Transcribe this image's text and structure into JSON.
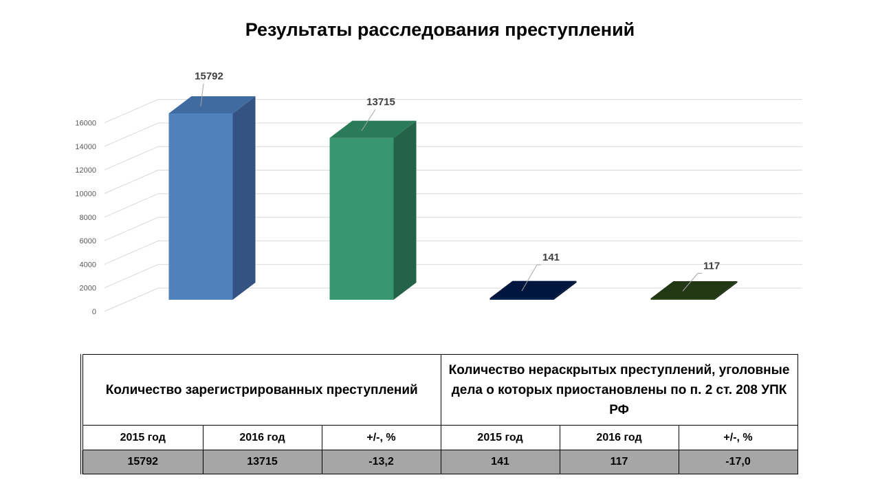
{
  "page": {
    "title": "Результаты расследования преступлений"
  },
  "chart_data": {
    "type": "bar",
    "categories": [
      "",
      "",
      "",
      ""
    ],
    "values": [
      15792,
      13715,
      141,
      117
    ],
    "data_labels": [
      "15792",
      "13715",
      "141",
      "117"
    ],
    "colors": {
      "front": [
        "#4f81bd",
        "#389770",
        "#021d4e",
        "#2b441a"
      ],
      "side": [
        "#345382",
        "#24634a",
        "#011433",
        "#1d2e11"
      ],
      "top": [
        "#3f6ba0",
        "#2a7b58",
        "#01163f",
        "#223815"
      ]
    },
    "ylim": [
      0,
      16000
    ],
    "y_ticks": [
      "0",
      "2000",
      "4000",
      "6000",
      "8000",
      "10000",
      "12000",
      "14000",
      "16000"
    ],
    "grid": true,
    "style": "3d-column"
  },
  "table": {
    "group_headers": [
      "Количество зарегистрированных преступлений",
      "Количество нераскрытых преступлений, уголовные дела о которых приостановлены по п. 2 ст. 208 УПК РФ"
    ],
    "columns": [
      "2015 год",
      "2016 год",
      "+/-, %",
      "2015 год",
      "2016 год",
      "+/-, %"
    ],
    "values": [
      "15792",
      "13715",
      "-13,2",
      "141",
      "117",
      "-17,0"
    ]
  }
}
